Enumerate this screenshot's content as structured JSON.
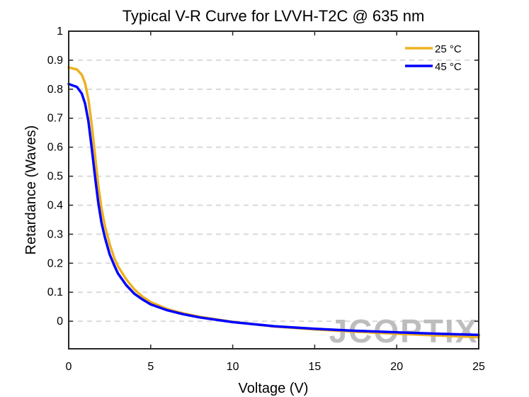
{
  "chart_data": {
    "type": "line",
    "title": "Typical V-R Curve for LVVH-T2C @ 635 nm",
    "xlabel": "Voltage (V)",
    "ylabel": "Retardance (Waves)",
    "xlim": [
      0,
      25
    ],
    "ylim": [
      -0.095,
      1.0
    ],
    "xticks": [
      0,
      5,
      10,
      15,
      20,
      25
    ],
    "xtick_labels": [
      "0",
      "5",
      "10",
      "15",
      "20",
      "25"
    ],
    "yticks": [
      0,
      0.1,
      0.2,
      0.3,
      0.4,
      0.5,
      0.6,
      0.7,
      0.8,
      0.9,
      1
    ],
    "ytick_labels": [
      "0",
      "0.1",
      "0.2",
      "0.3",
      "0.4",
      "0.5",
      "0.6",
      "0.7",
      "0.8",
      "0.9",
      "1"
    ],
    "grid": "horizontal dashed",
    "legend_position": "top-right",
    "series": [
      {
        "name": "25 °C",
        "color": "#EDB120",
        "x": [
          0,
          0.5,
          0.8,
          1.0,
          1.2,
          1.4,
          1.6,
          1.8,
          2.0,
          2.2,
          2.5,
          2.8,
          3.0,
          3.5,
          4.0,
          4.5,
          5.0,
          6.0,
          7.0,
          8.0,
          10.0,
          12.5,
          15.0,
          17.5,
          20.0,
          22.5,
          25.0
        ],
        "y": [
          0.875,
          0.868,
          0.85,
          0.82,
          0.765,
          0.68,
          0.575,
          0.47,
          0.39,
          0.33,
          0.265,
          0.215,
          0.19,
          0.145,
          0.11,
          0.085,
          0.066,
          0.042,
          0.027,
          0.015,
          -0.002,
          -0.018,
          -0.028,
          -0.036,
          -0.043,
          -0.049,
          -0.055
        ]
      },
      {
        "name": "45 °C",
        "color": "#0000FF",
        "x": [
          0,
          0.5,
          0.8,
          1.0,
          1.2,
          1.4,
          1.6,
          1.8,
          2.0,
          2.2,
          2.5,
          2.8,
          3.0,
          3.5,
          4.0,
          4.5,
          5.0,
          6.0,
          7.0,
          8.0,
          10.0,
          12.5,
          15.0,
          17.5,
          20.0,
          22.5,
          25.0
        ],
        "y": [
          0.818,
          0.808,
          0.785,
          0.75,
          0.69,
          0.6,
          0.5,
          0.41,
          0.34,
          0.29,
          0.23,
          0.19,
          0.165,
          0.125,
          0.095,
          0.075,
          0.058,
          0.038,
          0.024,
          0.013,
          -0.003,
          -0.017,
          -0.026,
          -0.033,
          -0.038,
          -0.043,
          -0.047
        ]
      }
    ]
  },
  "watermark": {
    "text": "JCOPTIX",
    "color": "#bdbdbd"
  }
}
